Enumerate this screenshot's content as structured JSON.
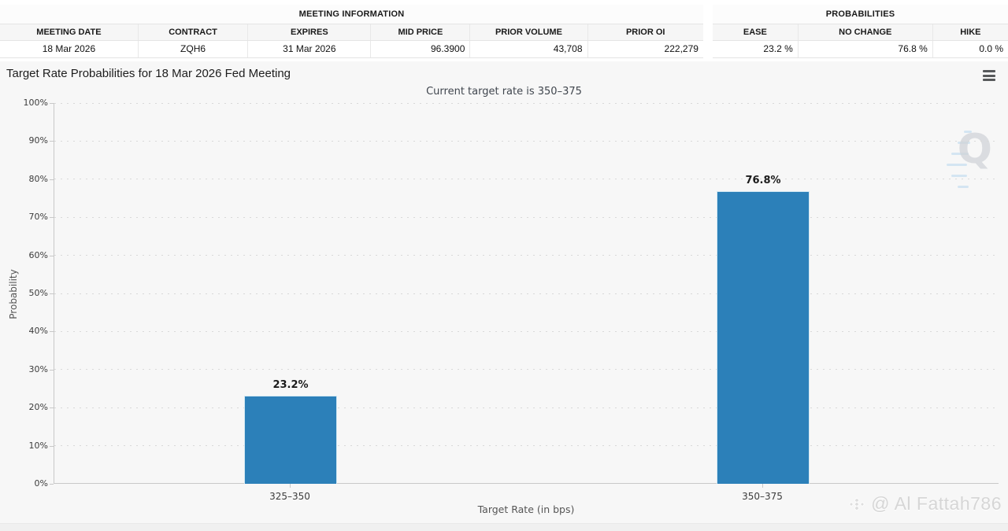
{
  "meeting_table": {
    "title": "MEETING INFORMATION",
    "headers": [
      "MEETING DATE",
      "CONTRACT",
      "EXPIRES",
      "MID PRICE",
      "PRIOR VOLUME",
      "PRIOR OI"
    ],
    "row": [
      "18 Mar 2026",
      "ZQH6",
      "31 Mar 2026",
      "96.3900",
      "43,708",
      "222,279"
    ]
  },
  "probabilities_table": {
    "title": "PROBABILITIES",
    "headers": [
      "EASE",
      "NO CHANGE",
      "HIKE"
    ],
    "row": [
      "23.2 %",
      "76.8 %",
      "0.0 %"
    ]
  },
  "chart": {
    "title": "Target Rate Probabilities for 18 Mar 2026 Fed Meeting",
    "subtitle": "Current target rate is 350–375",
    "xlabel": "Target Rate (in bps)",
    "ylabel": "Probability"
  },
  "chart_data": {
    "type": "bar",
    "categories": [
      "325–350",
      "350–375"
    ],
    "values": [
      23.2,
      76.8
    ],
    "value_labels": [
      "23.2%",
      "76.8%"
    ],
    "title": "Target Rate Probabilities for 18 Mar 2026 Fed Meeting",
    "subtitle": "Current target rate is 350–375",
    "xlabel": "Target Rate (in bps)",
    "ylabel": "Probability",
    "ylim": [
      0,
      100
    ],
    "ytick_step": 10,
    "ytick_suffix": "%",
    "grid": "dotted-horizontal",
    "legend": "none",
    "bar_color": "#2c80b9"
  },
  "watermark": {
    "logo_letter": "Q",
    "credit_text": "@ Al Fattah786"
  },
  "colors": {
    "bar": "#2c80b9",
    "axis": "#c8c8c8",
    "grid": "#d9d9d9",
    "chart_bg": "#f7f7f7"
  }
}
